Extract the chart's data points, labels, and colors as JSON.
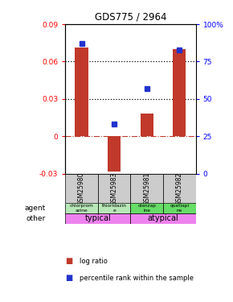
{
  "title": "GDS775 / 2964",
  "samples": [
    "GSM25980",
    "GSM25983",
    "GSM25981",
    "GSM25982"
  ],
  "log_ratios": [
    0.071,
    -0.028,
    0.018,
    0.07
  ],
  "percentile_ranks": [
    87,
    33,
    57,
    83
  ],
  "ylim_left": [
    -0.03,
    0.09
  ],
  "ylim_right": [
    0,
    100
  ],
  "yticks_left": [
    -0.03,
    0,
    0.03,
    0.06,
    0.09
  ],
  "ytick_labels_left": [
    "-0.03",
    "0",
    "0.03",
    "0.06",
    "0.09"
  ],
  "yticks_right": [
    0,
    25,
    50,
    75,
    100
  ],
  "ytick_labels_right": [
    "0",
    "25",
    "50",
    "75",
    "100%"
  ],
  "hlines": [
    0.06,
    0.03
  ],
  "bar_color": "#c0392b",
  "dot_color": "#2233cc",
  "agent_labels": [
    "chlorprom\nazine",
    "thioridazin\ne",
    "olanzap\nine",
    "quetiapi\nne"
  ],
  "agent_bg_colors": [
    "#b8e8b8",
    "#b8e8b8",
    "#66dd66",
    "#66dd66"
  ],
  "typical_color": "#ee82ee",
  "atypical_color": "#ee82ee",
  "legend_bar_color": "#c0392b",
  "legend_dot_color": "#2233cc"
}
